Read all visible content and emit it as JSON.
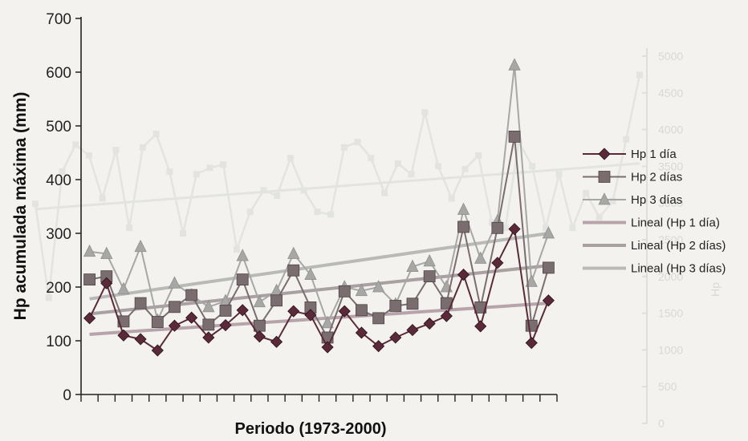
{
  "chart_data": {
    "type": "line",
    "xlabel": "Periodo (1973-2000)",
    "ylabel": "Hp acumulada máxima (mm)",
    "ylim": [
      0,
      700
    ],
    "yticks": [
      "0",
      "100",
      "200",
      "300",
      "400",
      "500",
      "600",
      "700"
    ],
    "x_count": 28,
    "grid": false,
    "legend_position": "right",
    "series": [
      {
        "name": "Hp 1 día",
        "marker": "diamond",
        "color": "#5a2a3a",
        "values": [
          142,
          207,
          110,
          103,
          82,
          128,
          143,
          106,
          129,
          157,
          108,
          98,
          155,
          148,
          88,
          155,
          115,
          90,
          106,
          120,
          132,
          146,
          223,
          127,
          245,
          308,
          96,
          175
        ]
      },
      {
        "name": "Hp 2 días",
        "marker": "square",
        "color": "#7a6d70",
        "values": [
          214,
          220,
          136,
          170,
          135,
          163,
          185,
          130,
          156,
          214,
          128,
          175,
          231,
          162,
          106,
          192,
          157,
          142,
          165,
          169,
          220,
          170,
          312,
          162,
          310,
          480,
          128,
          236
        ]
      },
      {
        "name": "Hp 3 días",
        "marker": "triangle",
        "color": "#a7a7a5",
        "values": [
          266,
          262,
          196,
          275,
          138,
          207,
          185,
          163,
          174,
          258,
          172,
          193,
          262,
          223,
          133,
          200,
          193,
          200,
          168,
          238,
          248,
          200,
          344,
          253,
          323,
          613,
          210,
          300
        ]
      }
    ],
    "trendlines": [
      {
        "name": "Lineal (Hp 1 día)",
        "color": "#b7a3ab",
        "start": 112,
        "end": 170
      },
      {
        "name": "Lineal (Hp 2 días)",
        "color": "#a9a0a2",
        "start": 150,
        "end": 240
      },
      {
        "name": "Lineal (Hp 3 días)",
        "color": "#b9b9b7",
        "start": 178,
        "end": 300
      }
    ],
    "background_ghost": {
      "color": "#e3e3df",
      "values": [
        355,
        180,
        415,
        465,
        445,
        365,
        455,
        310,
        460,
        485,
        415,
        300,
        410,
        422,
        428,
        270,
        340,
        380,
        370,
        440,
        380,
        340,
        335,
        460,
        470,
        440,
        375,
        430,
        410,
        525,
        425,
        365,
        420,
        445,
        320,
        310,
        470,
        425,
        310,
        410,
        310,
        375,
        330,
        360,
        475,
        595
      ],
      "trend_start": 345,
      "trend_end": 430,
      "right_ticks": [
        "0",
        "500",
        "1000",
        "1500",
        "2000",
        "2500",
        "3000",
        "3500",
        "4000",
        "4500",
        "5000"
      ],
      "right_label": "Hp"
    }
  }
}
